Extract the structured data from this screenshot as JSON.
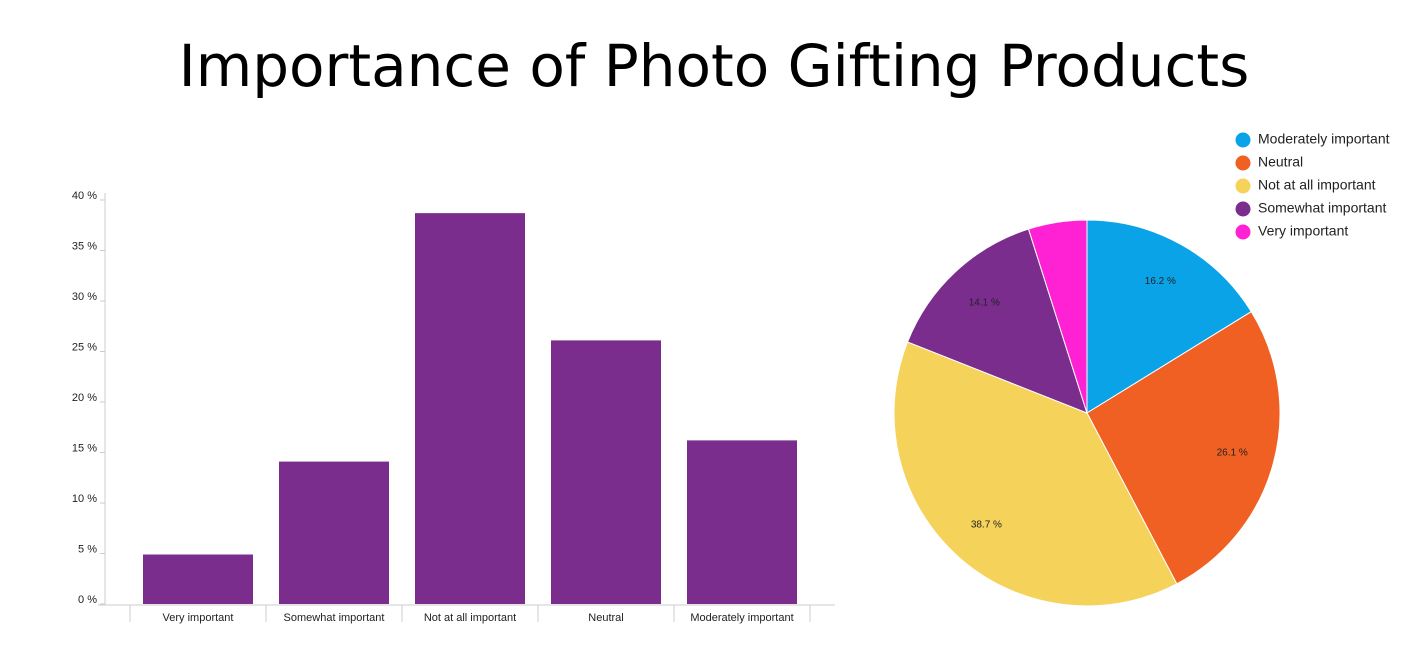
{
  "title": "Importance of Photo Gifting Products",
  "chart_data": [
    {
      "type": "bar",
      "categories": [
        "Very important",
        "Somewhat important",
        "Not at all important",
        "Neutral",
        "Moderately important"
      ],
      "values": [
        4.9,
        14.1,
        38.7,
        26.1,
        16.2
      ],
      "color": "#7b2d8e",
      "ylim": [
        0,
        40
      ],
      "yticks": [
        {
          "value": 0,
          "label": "0 %"
        },
        {
          "value": 5,
          "label": "5 %"
        },
        {
          "value": 10,
          "label": "10 %"
        },
        {
          "value": 15,
          "label": "15 %"
        },
        {
          "value": 20,
          "label": "20 %"
        },
        {
          "value": 25,
          "label": "25 %"
        },
        {
          "value": 30,
          "label": "30 %"
        },
        {
          "value": 35,
          "label": "35 %"
        },
        {
          "value": 40,
          "label": "40 %"
        }
      ]
    },
    {
      "type": "pie",
      "categories": [
        "Moderately important",
        "Neutral",
        "Not at all important",
        "Somewhat important",
        "Very important"
      ],
      "values": [
        16.2,
        26.1,
        38.7,
        14.1,
        4.9
      ],
      "value_labels": [
        "16.2 %",
        "26.1 %",
        "38.7 %",
        "14.1 %",
        null
      ],
      "colors": [
        "#0aa3e8",
        "#f06022",
        "#f5d35a",
        "#7b2d8e",
        "#ff22d4"
      ],
      "legend": "top-right"
    }
  ]
}
